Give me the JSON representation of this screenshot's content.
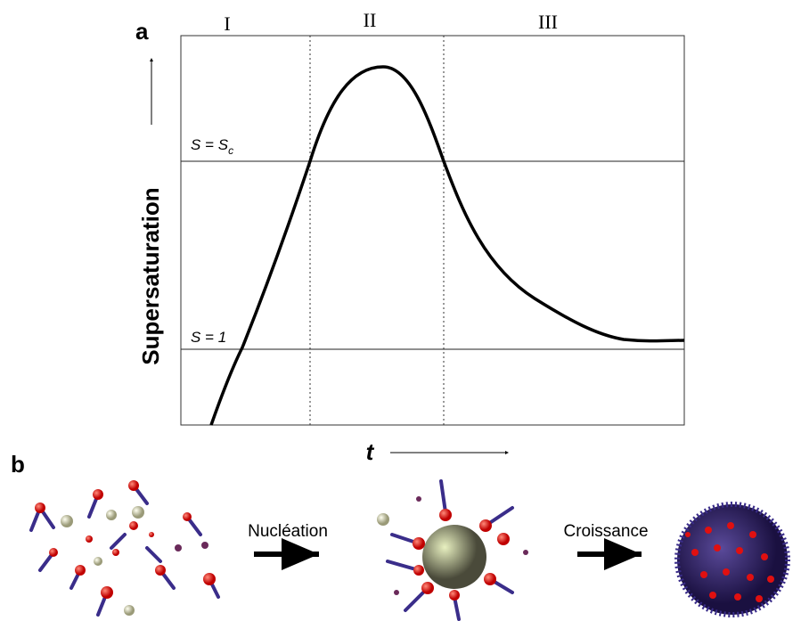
{
  "panel_a": {
    "label": "a",
    "regions": [
      "I",
      "II",
      "III"
    ],
    "y_axis_label": "Supersaturation",
    "x_axis_label": "t",
    "levels": {
      "critical": {
        "text": "S = S",
        "subscript": "c"
      },
      "saturation": "S = 1"
    }
  },
  "panel_b": {
    "label": "b",
    "steps": [
      "Nucléation",
      "Croissance"
    ]
  }
}
